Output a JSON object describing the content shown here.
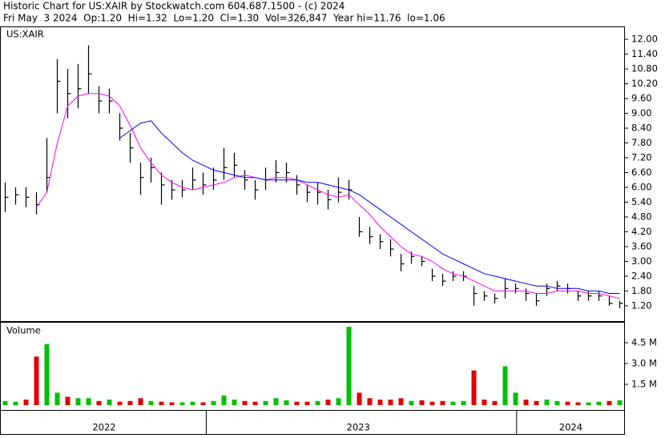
{
  "header": {
    "title": "Historic Chart for US:XAIR by Stockwatch.com 604.687.1500 - (c) 2024",
    "info": "Fri May  3 2024  Op:1.20  Hi=1.32  Lo=1.20  Cl=1.30  Vol=326,847  Year hi=11.76  lo=1.06"
  },
  "chart_data": {
    "type": "ohlc",
    "label": "US:XAIR",
    "color": "#000000",
    "xlim": [
      0,
      60
    ],
    "ylim": [
      0.58,
      12.49
    ],
    "yticks": [
      {
        "value": 1.2,
        "label": "1.20"
      },
      {
        "value": 1.8,
        "label": "1.80"
      },
      {
        "value": 2.4,
        "label": "2.40"
      },
      {
        "value": 3.0,
        "label": "3.00"
      },
      {
        "value": 3.6,
        "label": "3.60"
      },
      {
        "value": 4.2,
        "label": "4.20"
      },
      {
        "value": 4.8,
        "label": "4.80"
      },
      {
        "value": 5.4,
        "label": "5.40"
      },
      {
        "value": 6.0,
        "label": "6.00"
      },
      {
        "value": 6.6,
        "label": "6.60"
      },
      {
        "value": 7.2,
        "label": "7.20"
      },
      {
        "value": 7.8,
        "label": "7.80"
      },
      {
        "value": 8.4,
        "label": "8.40"
      },
      {
        "value": 9.0,
        "label": "9.00"
      },
      {
        "value": 9.6,
        "label": "9.60"
      },
      {
        "value": 10.2,
        "label": "10.20"
      },
      {
        "value": 10.8,
        "label": "10.80"
      },
      {
        "value": 11.4,
        "label": "11.40"
      },
      {
        "value": 12.0,
        "label": "12.00"
      }
    ],
    "high": [
      6.2,
      6.0,
      6.0,
      5.8,
      8.0,
      11.2,
      10.8,
      11.0,
      11.76,
      10.1,
      10.0,
      9.0,
      8.2,
      7.0,
      7.2,
      6.6,
      6.3,
      6.3,
      6.8,
      6.6,
      6.8,
      7.6,
      7.4,
      6.7,
      6.3,
      6.8,
      7.1,
      7.0,
      6.5,
      6.1,
      6.2,
      5.9,
      6.4,
      6.3,
      4.8,
      4.4,
      4.1,
      3.9,
      3.3,
      3.4,
      3.2,
      2.7,
      2.5,
      2.6,
      2.6,
      2.0,
      1.8,
      1.7,
      2.3,
      2.1,
      1.9,
      1.7,
      2.1,
      2.2,
      2.1,
      1.8,
      1.8,
      1.8,
      1.6,
      1.4
    ],
    "low": [
      5.0,
      5.3,
      5.2,
      4.9,
      5.8,
      9.0,
      8.8,
      9.2,
      9.8,
      9.0,
      9.0,
      7.9,
      7.0,
      5.7,
      6.2,
      5.3,
      5.5,
      5.6,
      5.9,
      5.7,
      5.9,
      6.3,
      6.4,
      5.9,
      5.5,
      5.9,
      6.2,
      6.2,
      5.7,
      5.4,
      5.3,
      5.1,
      5.4,
      5.5,
      4.0,
      3.7,
      3.5,
      3.2,
      2.6,
      2.9,
      2.8,
      2.2,
      2.0,
      2.2,
      2.2,
      1.2,
      1.4,
      1.3,
      1.5,
      1.7,
      1.4,
      1.2,
      1.6,
      1.8,
      1.7,
      1.4,
      1.4,
      1.4,
      1.2,
      1.1
    ],
    "close": [
      5.6,
      5.7,
      5.6,
      5.3,
      6.4,
      10.3,
      9.8,
      10.0,
      10.6,
      9.5,
      9.5,
      8.4,
      7.6,
      6.4,
      6.8,
      6.1,
      5.9,
      5.9,
      6.3,
      6.1,
      6.3,
      6.8,
      6.9,
      6.3,
      5.9,
      6.3,
      6.6,
      6.6,
      6.1,
      5.8,
      5.8,
      5.5,
      5.8,
      5.9,
      4.2,
      4.0,
      3.8,
      3.5,
      2.9,
      3.2,
      3.0,
      2.4,
      2.2,
      2.4,
      2.4,
      1.7,
      1.6,
      1.5,
      1.9,
      1.9,
      1.7,
      1.4,
      1.9,
      2.0,
      1.9,
      1.6,
      1.6,
      1.6,
      1.3,
      1.3
    ],
    "moving_averages": [
      {
        "color": "#ff00ff",
        "values": [
          null,
          null,
          null,
          5.2,
          5.8,
          7.8,
          9.3,
          9.7,
          9.8,
          9.8,
          9.7,
          9.3,
          8.5,
          7.6,
          7.0,
          6.5,
          6.2,
          6.0,
          5.9,
          6.0,
          6.1,
          6.2,
          6.4,
          6.5,
          6.4,
          6.3,
          6.4,
          6.4,
          6.3,
          6.1,
          5.9,
          5.7,
          5.6,
          5.7,
          5.3,
          4.9,
          4.4,
          4.0,
          3.6,
          3.3,
          3.2,
          3.0,
          2.7,
          2.5,
          2.4,
          2.2,
          2.0,
          1.8,
          1.8,
          1.8,
          1.8,
          1.7,
          1.7,
          1.8,
          1.8,
          1.8,
          1.7,
          1.7,
          1.6,
          1.5
        ]
      },
      {
        "color": "#0000ff",
        "values": [
          null,
          null,
          null,
          null,
          null,
          null,
          null,
          null,
          null,
          null,
          null,
          8.0,
          8.3,
          8.6,
          8.7,
          8.2,
          7.8,
          7.4,
          7.1,
          6.9,
          6.7,
          6.6,
          6.5,
          6.4,
          6.4,
          6.3,
          6.3,
          6.3,
          6.3,
          6.2,
          6.2,
          6.1,
          6.0,
          5.9,
          5.7,
          5.4,
          5.1,
          4.8,
          4.5,
          4.2,
          3.9,
          3.6,
          3.3,
          3.1,
          2.9,
          2.7,
          2.5,
          2.4,
          2.3,
          2.2,
          2.1,
          2.0,
          2.0,
          1.9,
          1.9,
          1.9,
          1.8,
          1.8,
          1.7,
          1.7
        ]
      }
    ],
    "volume": {
      "label": "Volume",
      "up_color": "#00c000",
      "down_color": "#e00000",
      "ylim": [
        0,
        6000000
      ],
      "yticks": [
        {
          "value": 1500000,
          "label": "1.5 M"
        },
        {
          "value": 3000000,
          "label": "3.0 M"
        },
        {
          "value": 4500000,
          "label": "4.5 M"
        }
      ],
      "values": [
        300000,
        250000,
        400000,
        3500000,
        4400000,
        900000,
        600000,
        500000,
        500000,
        300000,
        400000,
        250000,
        300000,
        500000,
        300000,
        250000,
        200000,
        200000,
        250000,
        200000,
        300000,
        700000,
        400000,
        300000,
        250000,
        300000,
        500000,
        350000,
        250000,
        250000,
        300000,
        400000,
        500000,
        5650000,
        900000,
        500000,
        400000,
        400000,
        500000,
        300000,
        350000,
        250000,
        300000,
        250000,
        300000,
        2500000,
        400000,
        300000,
        2800000,
        900000,
        400000,
        300000,
        400000,
        300000,
        250000,
        200000,
        200000,
        250000,
        300000,
        350000
      ]
    },
    "year_labels": [
      {
        "value": 10,
        "label": "2022"
      },
      {
        "value": 34.4,
        "label": "2023"
      },
      {
        "value": 54.8,
        "label": "2024"
      }
    ],
    "year_breaks": [
      19.8,
      49.6
    ]
  }
}
